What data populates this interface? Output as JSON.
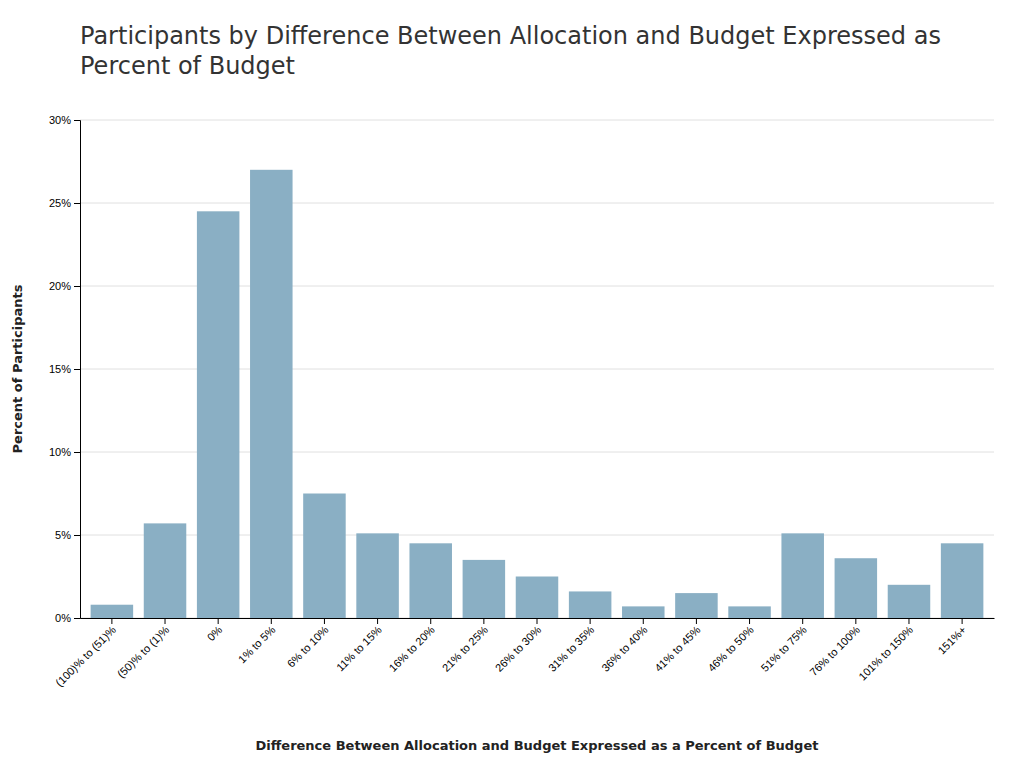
{
  "chart_data": {
    "type": "bar",
    "title": "Participants by Difference Between Allocation and Budget Expressed as Percent of Budget",
    "categories": [
      "(100)% to (51)%",
      "(50)% to (1)%",
      "0%",
      "1% to 5%",
      "6% to 10%",
      "11% to 15%",
      "16% to 20%",
      "21% to 25%",
      "26% to 30%",
      "31% to 35%",
      "36% to 40%",
      "41% to 45%",
      "46% to 50%",
      "51% to 75%",
      "76% to 100%",
      "101% to 150%",
      "151%+"
    ],
    "values": [
      0.8,
      5.7,
      24.5,
      27.0,
      7.5,
      5.1,
      4.5,
      3.5,
      2.5,
      1.6,
      0.7,
      1.5,
      0.7,
      5.1,
      3.6,
      2.0,
      4.5
    ],
    "color": "#8AAFC4",
    "x_label": "Difference Between Allocation and Budget Expressed as a Percent of Budget",
    "y_label": "Percent of Participants",
    "ylim": [
      0,
      30
    ],
    "yticks": [
      {
        "value": 0,
        "label": "0%"
      },
      {
        "value": 5,
        "label": "5%"
      },
      {
        "value": 10,
        "label": "10%"
      },
      {
        "value": 15,
        "label": "15%"
      },
      {
        "value": 20,
        "label": "20%"
      },
      {
        "value": 25,
        "label": "25%"
      },
      {
        "value": 30,
        "label": "30%"
      }
    ],
    "grid": true
  }
}
